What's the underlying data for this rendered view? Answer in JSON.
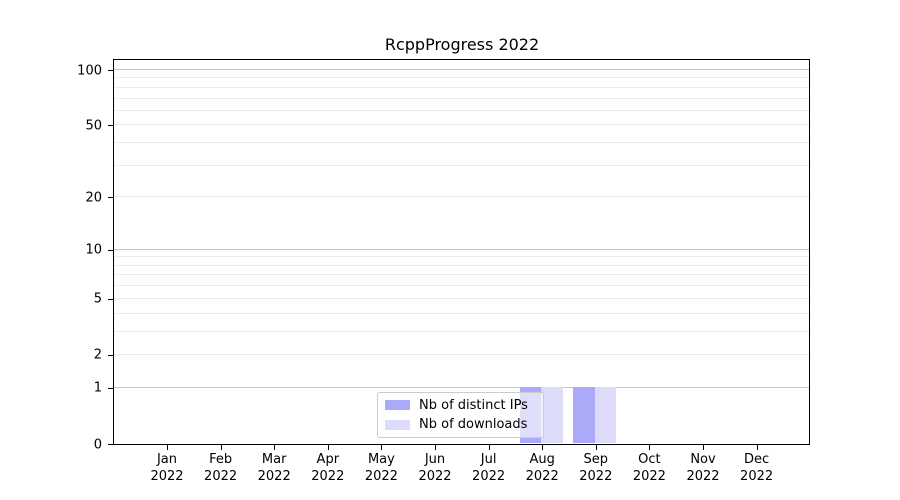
{
  "chart_data": {
    "type": "bar",
    "title": "RcppProgress 2022",
    "x_categories": [
      {
        "month": "Jan",
        "year": "2022"
      },
      {
        "month": "Feb",
        "year": "2022"
      },
      {
        "month": "Mar",
        "year": "2022"
      },
      {
        "month": "Apr",
        "year": "2022"
      },
      {
        "month": "May",
        "year": "2022"
      },
      {
        "month": "Jun",
        "year": "2022"
      },
      {
        "month": "Jul",
        "year": "2022"
      },
      {
        "month": "Aug",
        "year": "2022"
      },
      {
        "month": "Sep",
        "year": "2022"
      },
      {
        "month": "Oct",
        "year": "2022"
      },
      {
        "month": "Nov",
        "year": "2022"
      },
      {
        "month": "Dec",
        "year": "2022"
      }
    ],
    "series": [
      {
        "name": "Nb of distinct IPs",
        "color": "#aaaaf8",
        "values": [
          0,
          0,
          0,
          0,
          0,
          0,
          0,
          1,
          1,
          0,
          0,
          0
        ]
      },
      {
        "name": "Nb of downloads",
        "color": "#dcdbfa",
        "values": [
          0,
          0,
          0,
          0,
          0,
          0,
          0,
          1,
          1,
          0,
          0,
          0
        ]
      }
    ],
    "y_axis": {
      "scale": "log1p",
      "range": [
        0,
        100
      ],
      "tick_labels": [
        0,
        1,
        2,
        5,
        10,
        20,
        50,
        100
      ],
      "major_gridlines": [
        1,
        10,
        100
      ],
      "minor_gridlines": [
        2,
        3,
        4,
        5,
        6,
        7,
        8,
        9,
        20,
        30,
        40,
        50,
        60,
        70,
        80,
        90
      ]
    },
    "grid": true,
    "legend_position": "inside-bottom-center"
  },
  "colors": {
    "major_grid": "#c6c6c6",
    "minor_grid": "#ececec",
    "spine": "#000000",
    "legend_border": "#cccccc",
    "text": "#000000"
  }
}
